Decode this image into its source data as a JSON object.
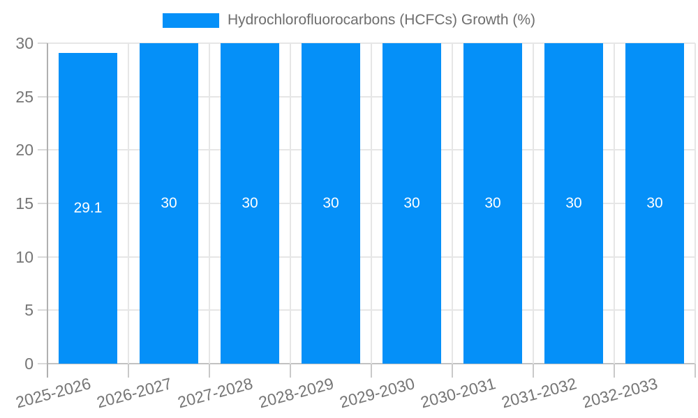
{
  "chart_data": {
    "type": "bar",
    "title": "",
    "legend": {
      "position": "top",
      "label": "Hydrochlorofluorocarbons (HCFCs) Growth (%)"
    },
    "categories": [
      "2025-2026",
      "2026-2027",
      "2027-2028",
      "2028-2029",
      "2029-2030",
      "2030-2031",
      "2031-2032",
      "2032-2033"
    ],
    "series": [
      {
        "name": "Hydrochlorofluorocarbons (HCFCs) Growth (%)",
        "values": [
          29.1,
          30,
          30,
          30,
          30,
          30,
          30,
          30
        ]
      }
    ],
    "value_labels": [
      "29.1",
      "30",
      "30",
      "30",
      "30",
      "30",
      "30",
      "30"
    ],
    "xlabel": "",
    "ylabel": "",
    "ylim": [
      0,
      30
    ],
    "yticks": [
      0,
      5,
      10,
      15,
      20,
      25,
      30
    ],
    "grid": true,
    "x_label_rotation_deg": -15,
    "colors": {
      "bar": "#0590F8",
      "axis_text": "#757575",
      "legend_text": "#6E6E6E",
      "value_label_text": "#FFFFFF",
      "gridline": "#E6E6E6",
      "baseline": "#C2C2C2",
      "axis_line": "#B0B0B0",
      "y_tick": "#D9D9D9",
      "x_tick": "#C9C9C9",
      "background": "#FFFFFF"
    }
  }
}
